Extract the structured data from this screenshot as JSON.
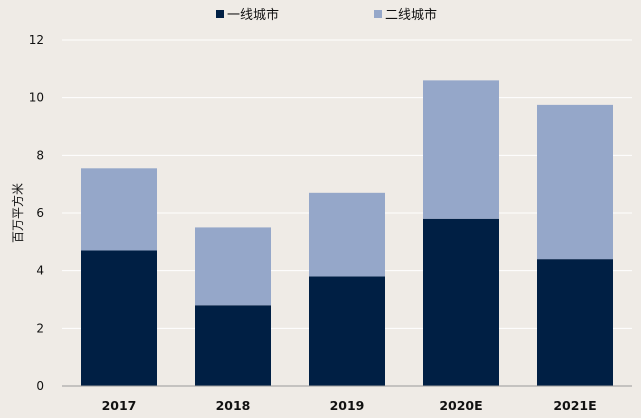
{
  "chart_data": {
    "type": "bar",
    "stacked": true,
    "categories": [
      "2017",
      "2018",
      "2019",
      "2020E",
      "2021E"
    ],
    "series": [
      {
        "name": "一线城市",
        "color": "#001f44",
        "values": [
          4.7,
          2.8,
          3.8,
          5.8,
          4.4
        ]
      },
      {
        "name": "二线城市",
        "color": "#95a7c9",
        "values": [
          2.85,
          2.7,
          2.9,
          4.8,
          5.35
        ]
      }
    ],
    "ylabel": "百万平方米",
    "ylim": [
      0,
      12
    ],
    "yticks": [
      "0",
      "2",
      "4",
      "6",
      "8",
      "10",
      "12"
    ],
    "grid": true,
    "legend_position": "top-center"
  },
  "colors": {
    "background": "#efebe6",
    "grid": "#ffffff",
    "axis": "#9a9a9a"
  }
}
